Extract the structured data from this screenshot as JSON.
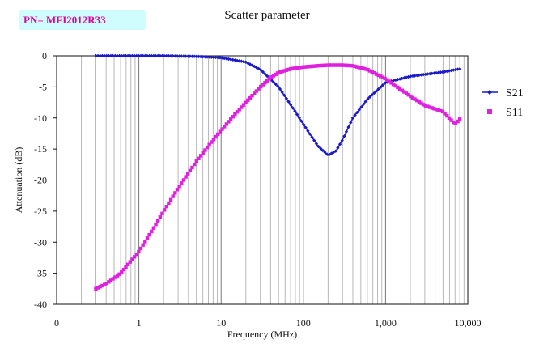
{
  "badge": {
    "text": "PN= MFI2012R33"
  },
  "chart_data": {
    "type": "line",
    "title": "Scatter parameter",
    "xlabel": "Frequency (MHz)",
    "ylabel": "Attenuation (dB)",
    "x_scale": "log",
    "xlim": [
      0.1,
      10000
    ],
    "ylim": [
      -40,
      0
    ],
    "grid": "vertical log gridlines",
    "legend_position": "right",
    "x_ticks": [
      {
        "value": 0.1,
        "label": "0"
      },
      {
        "value": 1,
        "label": "1"
      },
      {
        "value": 10,
        "label": "10"
      },
      {
        "value": 100,
        "label": "100"
      },
      {
        "value": 1000,
        "label": "1,000"
      },
      {
        "value": 10000,
        "label": "10,000"
      }
    ],
    "y_ticks": [
      0,
      -5,
      -10,
      -15,
      -20,
      -25,
      -30,
      -35,
      -40
    ],
    "series": [
      {
        "name": "S21",
        "color": "#1a1acc",
        "marker": "diamond",
        "x": [
          0.3,
          0.5,
          1,
          2,
          5,
          10,
          20,
          30,
          50,
          80,
          100,
          150,
          200,
          250,
          300,
          400,
          600,
          1000,
          2000,
          5000,
          8000
        ],
        "y": [
          0,
          0,
          0,
          0,
          -0.1,
          -0.3,
          -1.0,
          -2.2,
          -5.0,
          -9.0,
          -11.0,
          -14.5,
          -16.0,
          -15.3,
          -13.5,
          -10.0,
          -7.0,
          -4.3,
          -3.3,
          -2.6,
          -2.1
        ]
      },
      {
        "name": "S11",
        "color": "#e020e0",
        "marker": "square",
        "x": [
          0.3,
          0.4,
          0.6,
          1,
          1.5,
          2,
          3,
          5,
          7,
          10,
          15,
          20,
          30,
          40,
          50,
          70,
          100,
          150,
          200,
          300,
          400,
          600,
          1000,
          2000,
          3000,
          5000,
          7000,
          8000
        ],
        "y": [
          -37.5,
          -36.7,
          -35.0,
          -31.5,
          -27.8,
          -25.0,
          -21.3,
          -17.0,
          -14.5,
          -12.0,
          -9.3,
          -7.5,
          -5.0,
          -3.5,
          -2.7,
          -2.1,
          -1.8,
          -1.6,
          -1.5,
          -1.5,
          -1.6,
          -2.2,
          -3.7,
          -6.5,
          -8.0,
          -9.0,
          -11.0,
          -10.2
        ]
      }
    ]
  }
}
